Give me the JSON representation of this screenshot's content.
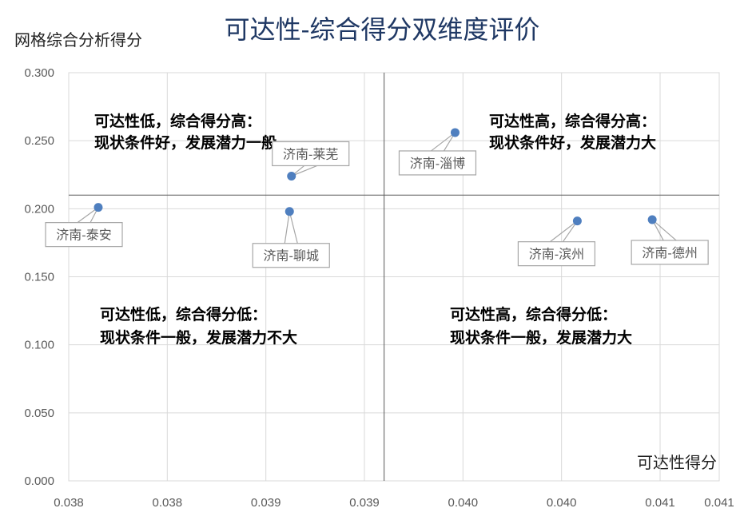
{
  "chart_data": {
    "type": "scatter",
    "title": "可达性-综合得分双维度评价",
    "ylabel": "网格综合分析得分",
    "xlabel": "可达性得分",
    "xlim": [
      0.03775,
      0.04105
    ],
    "ylim": [
      0,
      0.3
    ],
    "x_ticks": [
      0.03775,
      0.03825,
      0.03875,
      0.03925,
      0.03975,
      0.04025,
      0.04075,
      0.04105
    ],
    "x_tick_labels": [
      "0.038",
      "0.038",
      "0.039",
      "0.039",
      "0.040",
      "0.040",
      "0.041",
      "0.041"
    ],
    "y_ticks": [
      0,
      0.05,
      0.1,
      0.15,
      0.2,
      0.25,
      0.3
    ],
    "y_tick_labels": [
      "0.000",
      "0.050",
      "0.100",
      "0.150",
      "0.200",
      "0.250",
      "0.300"
    ],
    "grid": true,
    "divider_x": 0.03935,
    "divider_y": 0.21,
    "points": [
      {
        "label": "济南-泰安",
        "x": 0.0379,
        "y": 0.201
      },
      {
        "label": "济南-莱芜",
        "x": 0.03888,
        "y": 0.224
      },
      {
        "label": "济南-聊城",
        "x": 0.03887,
        "y": 0.198
      },
      {
        "label": "济南-淄博",
        "x": 0.03971,
        "y": 0.256
      },
      {
        "label": "济南-滨州",
        "x": 0.04033,
        "y": 0.191
      },
      {
        "label": "济南-德州",
        "x": 0.04071,
        "y": 0.192
      }
    ],
    "quadrant_notes": [
      {
        "line1": "可达性低，综合得分高：",
        "line2": "现状条件好，发展潜力一般"
      },
      {
        "line1": "可达性高，综合得分高：",
        "line2": "现状条件好，发展潜力大"
      },
      {
        "line1": "可达性低，综合得分低：",
        "line2": "现状条件一般，发展潜力不大"
      },
      {
        "line1": "可达性高，综合得分低：",
        "line2": "现状条件一般，发展潜力大"
      }
    ]
  }
}
